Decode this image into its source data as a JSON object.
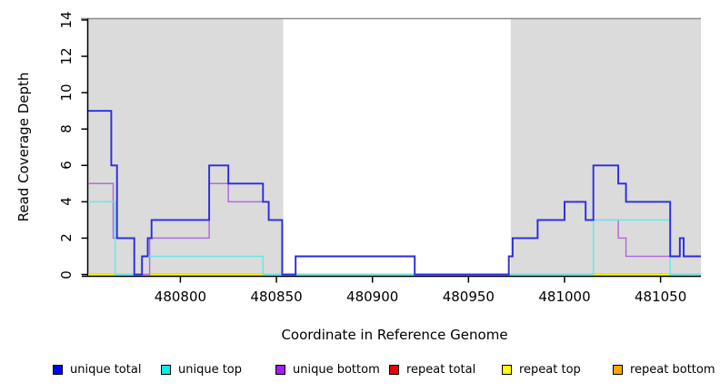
{
  "chart_data": {
    "type": "line",
    "subtype": "step-coverage",
    "title": "",
    "xlabel": "Coordinate in Reference Genome",
    "ylabel": "Read Coverage Depth",
    "xlim": [
      480752,
      481071
    ],
    "ylim": [
      0,
      14
    ],
    "x_ticks": [
      480800,
      480850,
      480900,
      480950,
      481000,
      481050
    ],
    "y_ticks": [
      0,
      2,
      4,
      6,
      8,
      10,
      12,
      14
    ],
    "grid": false,
    "legend_position": "bottom",
    "shaded_regions": [
      {
        "name": "left-gray-band",
        "from": 480752,
        "to": 480853.5,
        "color": "#dbdbdb"
      },
      {
        "name": "right-gray-band",
        "from": 480972,
        "to": 481071,
        "color": "#dbdbdb"
      }
    ],
    "series": [
      {
        "name": "unique total",
        "color": "#2a2ae6",
        "line_width": 1.9,
        "steps": [
          [
            480752,
            9
          ],
          [
            480764,
            6
          ],
          [
            480767,
            2
          ],
          [
            480776,
            0
          ],
          [
            480780,
            1
          ],
          [
            480783,
            2
          ],
          [
            480785,
            3
          ],
          [
            480815,
            6
          ],
          [
            480825,
            5
          ],
          [
            480843,
            4
          ],
          [
            480846,
            3
          ],
          [
            480853,
            0
          ],
          [
            480860,
            1
          ],
          [
            480922,
            0
          ],
          [
            480971,
            1
          ],
          [
            480973,
            2
          ],
          [
            480986,
            3
          ],
          [
            481000,
            4
          ],
          [
            481011,
            3
          ],
          [
            481015,
            6
          ],
          [
            481028,
            5
          ],
          [
            481032,
            4
          ],
          [
            481055,
            1
          ],
          [
            481060,
            2
          ],
          [
            481062,
            1
          ]
        ]
      },
      {
        "name": "unique top",
        "color": "#6ce6e6",
        "line_width": 1.5,
        "steps": [
          [
            480752,
            4
          ],
          [
            480766,
            0
          ],
          [
            480780,
            1
          ],
          [
            480843,
            0
          ],
          [
            481015,
            3
          ],
          [
            481055,
            0
          ]
        ]
      },
      {
        "name": "unique bottom",
        "color": "#b26cdb",
        "line_width": 1.5,
        "steps": [
          [
            480752,
            5
          ],
          [
            480765,
            2
          ],
          [
            480776,
            0
          ],
          [
            480784,
            2
          ],
          [
            480815,
            5
          ],
          [
            480825,
            4
          ],
          [
            480846,
            3
          ],
          [
            480853,
            0
          ],
          [
            480860,
            1
          ],
          [
            480922,
            0
          ],
          [
            480971,
            1
          ],
          [
            480973,
            2
          ],
          [
            480986,
            3
          ],
          [
            481000,
            4
          ],
          [
            481011,
            3
          ],
          [
            481028,
            2
          ],
          [
            481032,
            1
          ],
          [
            481060,
            2
          ],
          [
            481062,
            1
          ]
        ]
      },
      {
        "name": "repeat total",
        "color": "#ee0000",
        "line_width": 1.5,
        "steps": [
          [
            480752,
            0
          ]
        ]
      },
      {
        "name": "repeat top",
        "color": "#ffff00",
        "line_width": 1.5,
        "steps": [
          [
            480752,
            0
          ]
        ]
      },
      {
        "name": "repeat bottom",
        "color": "#ffa500",
        "line_width": 1.8,
        "steps": [
          [
            480752,
            0
          ]
        ],
        "visible_segments": [
          [
            480752,
            480841
          ],
          [
            481015,
            481055
          ]
        ]
      }
    ],
    "baseline_segments": [
      {
        "name": "repeat-bottom-orange",
        "color": "#ffa500",
        "from": 480752,
        "to": 480841
      },
      {
        "name": "overlap-green",
        "color": "#94cf94",
        "from": 480841,
        "to": 481015
      },
      {
        "name": "repeat-bottom-orange-2",
        "color": "#ffa500",
        "from": 481015,
        "to": 481055
      },
      {
        "name": "overlap-green-2",
        "color": "#94cf94",
        "from": 481055,
        "to": 481071
      }
    ],
    "legend": [
      {
        "label": "unique total",
        "color": "#0000ee"
      },
      {
        "label": "unique top",
        "color": "#00eeee"
      },
      {
        "label": "unique bottom",
        "color": "#a020f0"
      },
      {
        "label": "repeat total",
        "color": "#ee0000"
      },
      {
        "label": "repeat top",
        "color": "#ffff00"
      },
      {
        "label": "repeat bottom",
        "color": "#ffa500"
      }
    ]
  },
  "colors": {
    "band": "#dbdbdb",
    "top_border": "#8c8c8c",
    "axis": "#000000"
  }
}
